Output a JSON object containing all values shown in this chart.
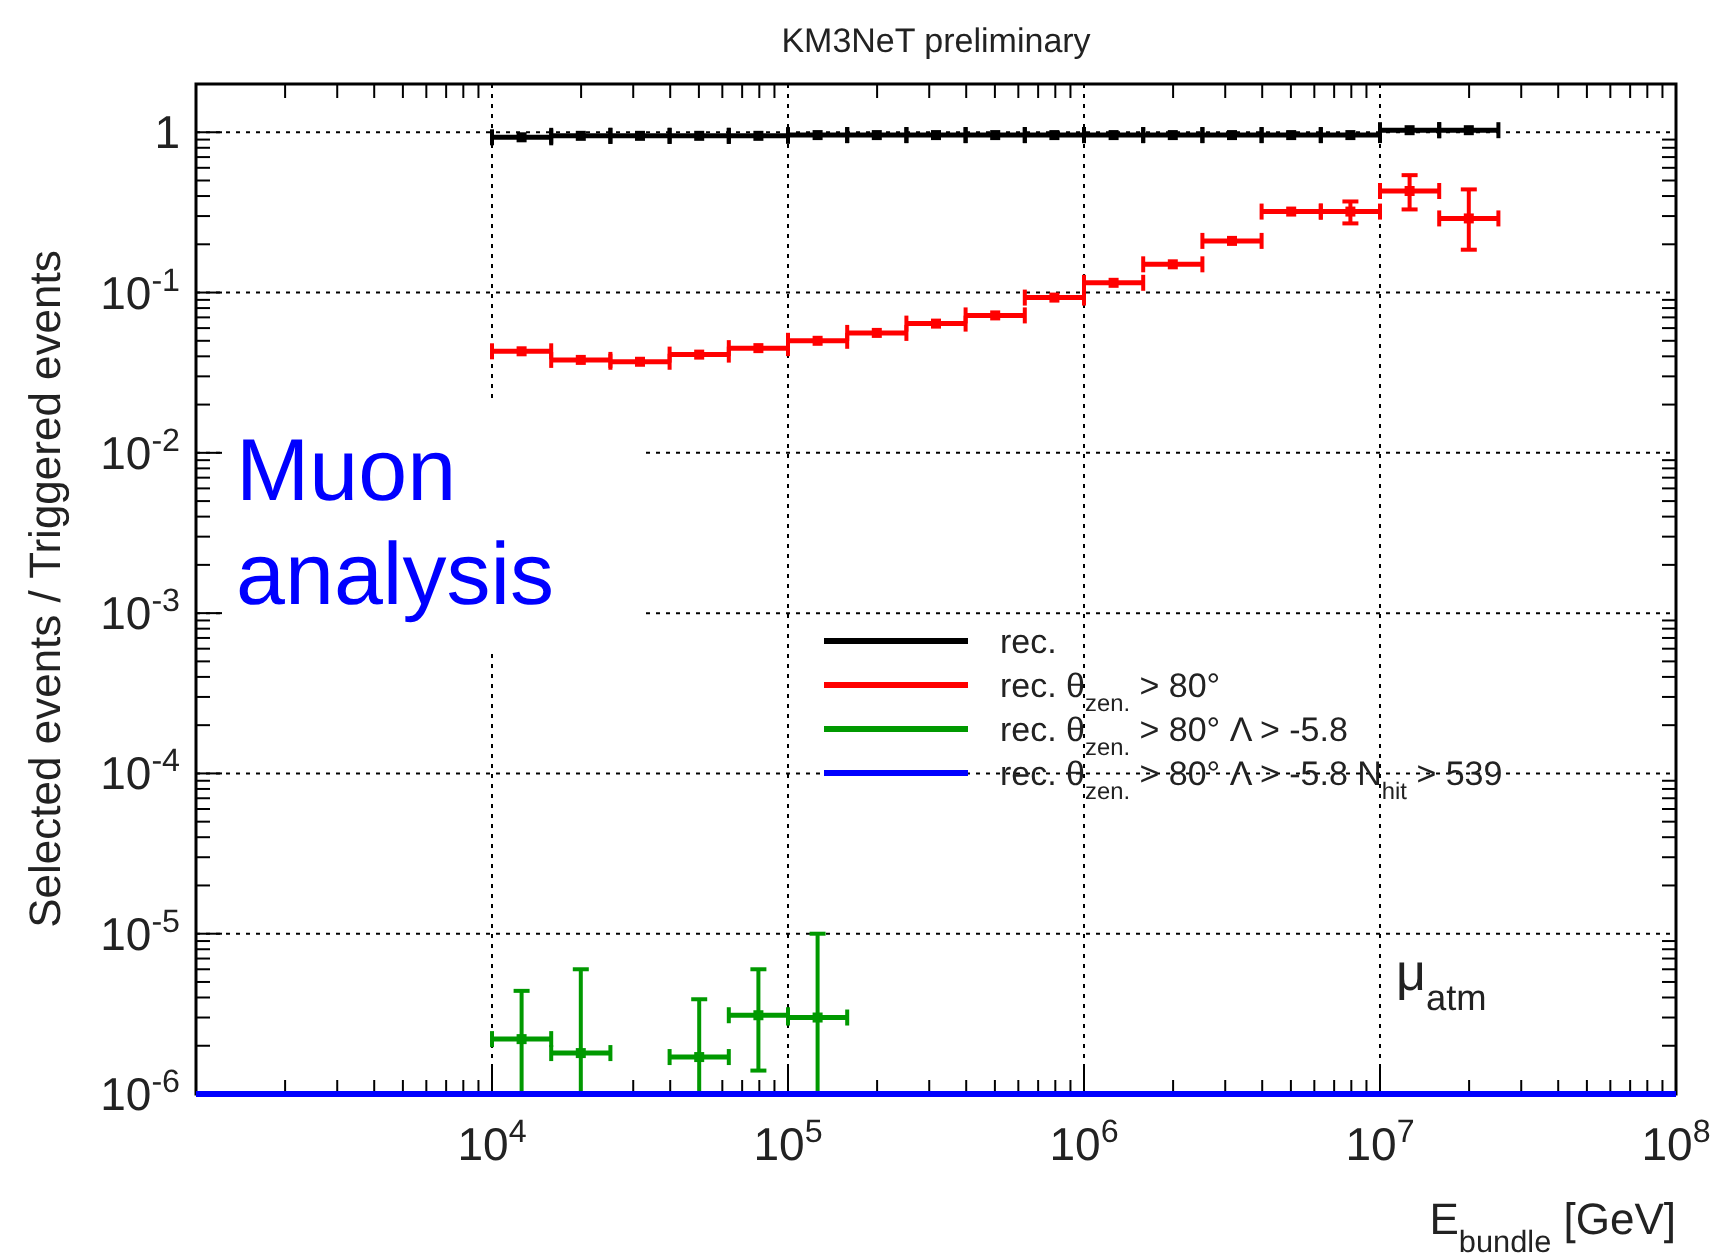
{
  "chart_data": {
    "type": "scatter",
    "title": "KM3NeT preliminary",
    "xlabel": "E$_{bundle}$ [GeV]",
    "ylabel": "Selected events / Triggered events",
    "log": "xy",
    "grid": true,
    "legend": "right",
    "xlim": [
      1000,
      100000000
    ],
    "xticks": [
      {
        "value": 1000,
        "label": null
      },
      {
        "value": 10000,
        "label": "10$^{4}$"
      },
      {
        "value": 100000,
        "label": "10$^{5}$"
      },
      {
        "value": 1000000,
        "label": "10$^{6}$"
      },
      {
        "value": 10000000,
        "label": "10$^{7}$"
      },
      {
        "value": 100000000,
        "label": "10$^{8}$"
      }
    ],
    "ylim": [
      1e-06,
      2
    ],
    "yticks": [
      {
        "value": 1e-06,
        "label": "10$^{-6}$"
      },
      {
        "value": 1e-05,
        "label": "10$^{-5}$"
      },
      {
        "value": 0.0001,
        "label": "10$^{-4}$"
      },
      {
        "value": 0.001,
        "label": "10$^{-3}$"
      },
      {
        "value": 0.01,
        "label": "10$^{-2}$"
      },
      {
        "value": 0.1,
        "label": "10$^{-1}$"
      },
      1
    ],
    "annotations": [
      "Muon analysis",
      "μ$_{atm}$"
    ],
    "series": [
      {
        "name": "rec.",
        "marker": "square",
        "color": "#000000",
        "x": [
          12589,
          19953,
          31623,
          50119,
          79433,
          125893,
          199526,
          316228,
          501187,
          794328,
          1258925,
          1995262,
          3162278,
          5011872,
          7943282,
          12589254,
          19952623
        ],
        "values": [
          0.93,
          0.95,
          0.95,
          0.95,
          0.95,
          0.96,
          0.96,
          0.96,
          0.96,
          0.96,
          0.96,
          0.96,
          0.96,
          0.96,
          0.96,
          1.03,
          1.03
        ],
        "xerrors": [
          [
            10000,
            15849
          ],
          [
            15849,
            25119
          ],
          [
            25119,
            39811
          ],
          [
            39811,
            63096
          ],
          [
            63096,
            100000
          ],
          [
            100000,
            158489
          ],
          [
            158489,
            251189
          ],
          [
            251189,
            398107
          ],
          [
            398107,
            630957
          ],
          [
            630957,
            1000000
          ],
          [
            1000000,
            1584893
          ],
          [
            1584893,
            2511886
          ],
          [
            2511886,
            3981072
          ],
          [
            3981072,
            6309573
          ],
          [
            6309573,
            10000000
          ],
          [
            10000000,
            15848932
          ],
          [
            15848932,
            25118864
          ]
        ]
      },
      {
        "name": "rec. θ$_{zen.}$ > 80°",
        "marker": "square",
        "color": "#ff0000",
        "x": [
          12589,
          19953,
          31623,
          50119,
          79433,
          125893,
          199526,
          316228,
          501187,
          794328,
          1258925,
          1995262,
          3162278,
          5011872,
          7943282,
          12589254,
          19952623
        ],
        "values": [
          0.043,
          0.038,
          0.037,
          0.041,
          0.045,
          0.05,
          0.056,
          0.064,
          0.072,
          0.093,
          0.115,
          0.15,
          0.21,
          0.32,
          0.32,
          0.43,
          0.29
        ],
        "xerrors": [
          [
            10000,
            15849
          ],
          [
            15849,
            25119
          ],
          [
            25119,
            39811
          ],
          [
            39811,
            63096
          ],
          [
            63096,
            100000
          ],
          [
            100000,
            158489
          ],
          [
            158489,
            251189
          ],
          [
            251189,
            398107
          ],
          [
            398107,
            630957
          ],
          [
            630957,
            1000000
          ],
          [
            1000000,
            1584893
          ],
          [
            1584893,
            2511886
          ],
          [
            2511886,
            3981072
          ],
          [
            3981072,
            6309573
          ],
          [
            6309573,
            10000000
          ],
          [
            10000000,
            15848932
          ],
          [
            15848932,
            25118864
          ]
        ],
        "errors": [
          null,
          null,
          null,
          null,
          null,
          null,
          null,
          null,
          null,
          null,
          null,
          null,
          null,
          null,
          [
            0.27,
            0.37
          ],
          [
            0.33,
            0.54
          ],
          [
            0.185,
            0.44
          ]
        ]
      },
      {
        "name": "rec. θ$_{zen.}$ > 80° Λ > -5.8",
        "marker": "square",
        "color": "#009900",
        "x": [
          12589,
          19953,
          50119,
          79433,
          125893
        ],
        "values": [
          2.2e-06,
          1.8e-06,
          1.7e-06,
          3.1e-06,
          3e-06
        ],
        "xerrors": [
          [
            10000,
            15849
          ],
          [
            15849,
            25119
          ],
          [
            39811,
            63096
          ],
          [
            63096,
            100000
          ],
          [
            100000,
            158489
          ]
        ],
        "errors": [
          [
            1e-06,
            4.4e-06
          ],
          [
            1e-06,
            6e-06
          ],
          [
            1e-06,
            3.9e-06
          ],
          [
            1.4e-06,
            6e-06
          ],
          [
            1e-06,
            1e-05
          ]
        ]
      },
      {
        "name": "rec. θ$_{zen.}$ > 80° Λ > -5.8 N$_{hit}$ > 539",
        "type": "line",
        "color": "#0000ff",
        "x": [
          1000,
          100000000
        ],
        "values": [
          1e-06,
          1e-06
        ]
      }
    ]
  }
}
